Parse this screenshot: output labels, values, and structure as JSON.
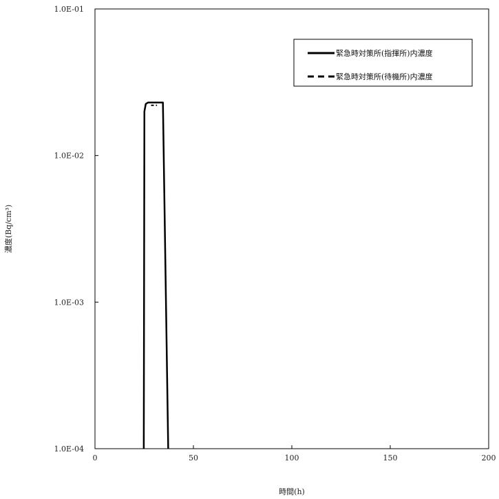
{
  "chart_data": {
    "type": "line",
    "title": "",
    "xlabel": "時間(h)",
    "ylabel": "濃度(Bq/cm³)",
    "xlim": [
      0,
      200
    ],
    "ylim": [
      0.0001,
      0.1
    ],
    "yscale": "log",
    "grid": false,
    "legend_position": "top-right",
    "x_ticks": [
      0,
      50,
      100,
      150,
      200
    ],
    "y_ticks": [
      0.0001,
      0.001,
      0.01,
      0.1
    ],
    "x_tick_labels": [
      "0",
      "50",
      "100",
      "150",
      "200"
    ],
    "y_tick_labels": [
      "1.0E-04",
      "1.0E-03",
      "1.0E-02",
      "1.0E-01"
    ],
    "series": [
      {
        "name": "緊急時対策所(指揮所)内濃度",
        "style": "solid",
        "color": "#000000",
        "x": [
          24.8,
          25.1,
          25.8,
          27.0,
          33.5,
          34.5,
          37.2
        ],
        "y": [
          0.0001,
          0.02,
          0.0225,
          0.023,
          0.023,
          0.023,
          0.0001
        ]
      },
      {
        "name": "緊急時対策所(待機所)内濃度",
        "style": "dashed",
        "color": "#000000",
        "x": [
          28.5,
          31.5
        ],
        "y": [
          0.022,
          0.022
        ]
      }
    ]
  }
}
